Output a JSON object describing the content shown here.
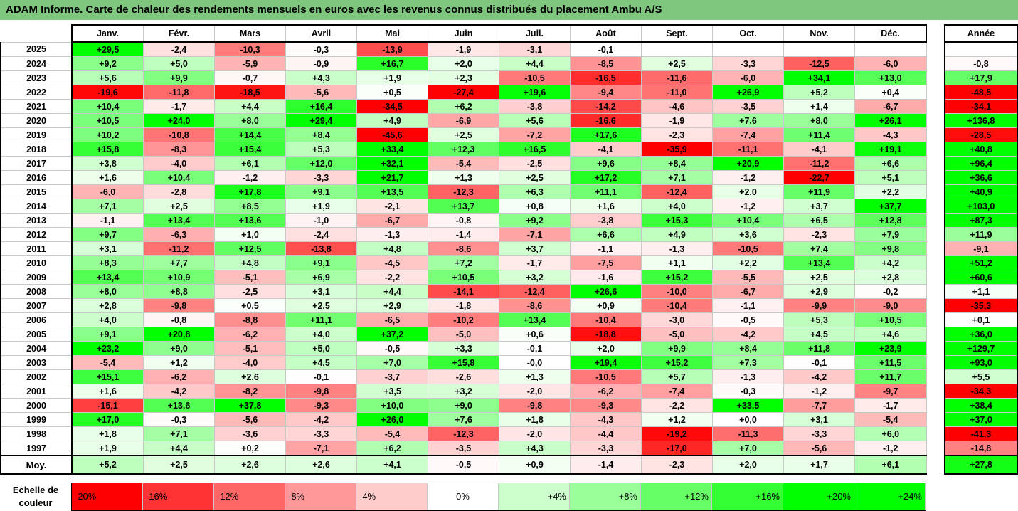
{
  "title": "ADAM Informe. Carte de chaleur des rendements mensuels en euros avec les revenus connus distribués du placement Ambu A/S",
  "chart_data": {
    "type": "heatmap",
    "months": [
      "Janv.",
      "Févr.",
      "Mars",
      "Avril",
      "Mai",
      "Juin",
      "Juil.",
      "Août",
      "Sept.",
      "Oct.",
      "Nov.",
      "Déc."
    ],
    "year_header": "Année",
    "rows": [
      {
        "year": "2025",
        "values": [
          "+29,5",
          "-2,4",
          "-10,3",
          "-0,3",
          "-13,9",
          "-1,9",
          "-3,1",
          "-0,1",
          "",
          "",
          "",
          ""
        ],
        "annual": ""
      },
      {
        "year": "2024",
        "values": [
          "+9,2",
          "+5,0",
          "-5,9",
          "-0,9",
          "+16,7",
          "+2,0",
          "+4,4",
          "-8,5",
          "+2,5",
          "-3,3",
          "-12,5",
          "-6,0"
        ],
        "annual": "-0,8"
      },
      {
        "year": "2023",
        "values": [
          "+5,6",
          "+9,9",
          "-0,7",
          "+4,3",
          "+1,9",
          "+2,3",
          "-10,5",
          "-16,5",
          "-11,6",
          "-6,0",
          "+34,1",
          "+13,0"
        ],
        "annual": "+17,9"
      },
      {
        "year": "2022",
        "values": [
          "-19,6",
          "-11,8",
          "-18,5",
          "-5,6",
          "+0,5",
          "-27,4",
          "+19,6",
          "-9,4",
          "-11,0",
          "+26,9",
          "+5,2",
          "+0,4"
        ],
        "annual": "-48,5"
      },
      {
        "year": "2021",
        "values": [
          "+10,4",
          "-1,7",
          "+4,4",
          "+16,4",
          "-34,5",
          "+6,2",
          "-3,8",
          "-14,2",
          "-4,6",
          "-3,5",
          "+1,4",
          "-6,7"
        ],
        "annual": "-34,1"
      },
      {
        "year": "2020",
        "values": [
          "+10,5",
          "+24,0",
          "+8,0",
          "+29,4",
          "+4,9",
          "-6,9",
          "+5,6",
          "-16,6",
          "-1,9",
          "+7,6",
          "+8,0",
          "+26,1"
        ],
        "annual": "+136,8"
      },
      {
        "year": "2019",
        "values": [
          "+10,2",
          "-10,8",
          "+14,4",
          "+8,4",
          "-45,6",
          "+2,5",
          "-7,2",
          "+17,6",
          "-2,3",
          "-7,4",
          "+11,4",
          "-4,3"
        ],
        "annual": "-28,5"
      },
      {
        "year": "2018",
        "values": [
          "+15,8",
          "-8,3",
          "+15,4",
          "+5,3",
          "+33,4",
          "+12,3",
          "+16,5",
          "-4,1",
          "-35,9",
          "-11,1",
          "-4,1",
          "+19,1"
        ],
        "annual": "+40,8"
      },
      {
        "year": "2017",
        "values": [
          "+3,8",
          "-4,0",
          "+6,1",
          "+12,0",
          "+32,1",
          "-5,4",
          "-2,5",
          "+9,6",
          "+8,4",
          "+20,9",
          "-11,2",
          "+6,6"
        ],
        "annual": "+96,4"
      },
      {
        "year": "2016",
        "values": [
          "+1,6",
          "+10,4",
          "-1,2",
          "-3,3",
          "+21,7",
          "+1,3",
          "+2,5",
          "+17,2",
          "+7,1",
          "-1,2",
          "-22,7",
          "+5,1"
        ],
        "annual": "+36,6"
      },
      {
        "year": "2015",
        "values": [
          "-6,0",
          "-2,8",
          "+17,8",
          "+9,1",
          "+13,5",
          "-12,3",
          "+6,3",
          "+11,1",
          "-12,4",
          "+2,0",
          "+11,9",
          "+2,2"
        ],
        "annual": "+40,9"
      },
      {
        "year": "2014",
        "values": [
          "+7,1",
          "+2,5",
          "+8,5",
          "+1,9",
          "-2,1",
          "+13,7",
          "+0,8",
          "+1,6",
          "+4,0",
          "-1,2",
          "+3,7",
          "+37,7"
        ],
        "annual": "+103,0"
      },
      {
        "year": "2013",
        "values": [
          "-1,1",
          "+13,4",
          "+13,6",
          "-1,0",
          "-6,7",
          "-0,8",
          "+9,2",
          "-3,8",
          "+15,3",
          "+10,4",
          "+6,5",
          "+12,8"
        ],
        "annual": "+87,3"
      },
      {
        "year": "2012",
        "values": [
          "+9,7",
          "-6,3",
          "+1,0",
          "-2,4",
          "-1,3",
          "-1,4",
          "-7,1",
          "+6,6",
          "+4,9",
          "+3,6",
          "-2,3",
          "+7,9"
        ],
        "annual": "+11,9"
      },
      {
        "year": "2011",
        "values": [
          "+3,1",
          "-11,2",
          "+12,5",
          "-13,8",
          "+4,8",
          "-8,6",
          "+3,7",
          "-1,1",
          "-1,3",
          "-10,5",
          "+7,4",
          "+9,8"
        ],
        "annual": "-9,1"
      },
      {
        "year": "2010",
        "values": [
          "+8,3",
          "+7,7",
          "+4,8",
          "+9,1",
          "-4,5",
          "+7,2",
          "-1,7",
          "-7,5",
          "+1,1",
          "+2,2",
          "+13,4",
          "+4,2"
        ],
        "annual": "+51,2"
      },
      {
        "year": "2009",
        "values": [
          "+13,4",
          "+10,9",
          "-5,1",
          "+6,9",
          "-2,2",
          "+10,5",
          "+3,2",
          "-1,6",
          "+15,2",
          "-5,5",
          "+2,5",
          "+2,8"
        ],
        "annual": "+60,6"
      },
      {
        "year": "2008",
        "values": [
          "+8,0",
          "+8,8",
          "-2,5",
          "+3,1",
          "+4,4",
          "-14,1",
          "-12,4",
          "+26,6",
          "-10,0",
          "-6,7",
          "+2,9",
          "-0,2"
        ],
        "annual": "+1,1"
      },
      {
        "year": "2007",
        "values": [
          "+2,8",
          "-9,8",
          "+0,5",
          "+2,5",
          "+2,9",
          "-1,8",
          "-8,6",
          "+0,9",
          "-10,4",
          "-1,1",
          "-9,9",
          "-9,0"
        ],
        "annual": "-35,3"
      },
      {
        "year": "2006",
        "values": [
          "+4,0",
          "-0,8",
          "-8,8",
          "+11,1",
          "-6,5",
          "-10,2",
          "+13,4",
          "-10,4",
          "-3,0",
          "-0,5",
          "+5,3",
          "+10,5"
        ],
        "annual": "+0,1"
      },
      {
        "year": "2005",
        "values": [
          "+9,1",
          "+20,8",
          "-6,2",
          "+4,0",
          "+37,2",
          "-5,0",
          "+0,6",
          "-18,8",
          "-5,0",
          "-4,2",
          "+4,5",
          "+4,6"
        ],
        "annual": "+36,0"
      },
      {
        "year": "2004",
        "values": [
          "+23,2",
          "+9,0",
          "-5,1",
          "+5,0",
          "-0,5",
          "+3,3",
          "-0,1",
          "+2,0",
          "+9,9",
          "+8,4",
          "+11,8",
          "+23,9"
        ],
        "annual": "+129,7"
      },
      {
        "year": "2003",
        "values": [
          "-5,4",
          "+1,2",
          "-4,0",
          "+4,5",
          "+7,0",
          "+15,8",
          "-0,0",
          "+19,4",
          "+15,2",
          "+7,3",
          "-0,1",
          "+11,5"
        ],
        "annual": "+93,0"
      },
      {
        "year": "2002",
        "values": [
          "+15,1",
          "-6,2",
          "+2,6",
          "-0,1",
          "-3,7",
          "-2,6",
          "+1,3",
          "-10,5",
          "+5,7",
          "-1,3",
          "-4,2",
          "+11,7"
        ],
        "annual": "+5,5"
      },
      {
        "year": "2001",
        "values": [
          "+1,6",
          "-4,2",
          "-8,2",
          "-9,8",
          "+3,5",
          "+3,2",
          "-2,0",
          "-6,2",
          "-7,4",
          "-0,3",
          "-1,2",
          "-9,7"
        ],
        "annual": "-34,3"
      },
      {
        "year": "2000",
        "values": [
          "-15,1",
          "+13,6",
          "+37,8",
          "-9,3",
          "+10,0",
          "+9,0",
          "-9,8",
          "-9,3",
          "-2,2",
          "+33,5",
          "-7,7",
          "-1,7"
        ],
        "annual": "+38,4"
      },
      {
        "year": "1999",
        "values": [
          "+17,0",
          "-0,3",
          "-5,6",
          "-4,2",
          "+26,0",
          "+7,6",
          "+1,8",
          "-4,3",
          "+1,2",
          "+0,0",
          "+3,1",
          "-5,4"
        ],
        "annual": "+37,0"
      },
      {
        "year": "1998",
        "values": [
          "+1,8",
          "+7,1",
          "-3,6",
          "-3,3",
          "-5,4",
          "-12,3",
          "-2,0",
          "-4,4",
          "-19,2",
          "-11,3",
          "-3,3",
          "+6,0"
        ],
        "annual": "-41,3"
      },
      {
        "year": "1997",
        "values": [
          "+1,9",
          "+4,4",
          "+0,2",
          "-7,1",
          "+6,2",
          "-3,5",
          "+4,3",
          "-3,3",
          "-17,0",
          "+7,0",
          "-5,6",
          "-1,2"
        ],
        "annual": "-14,8"
      }
    ],
    "average": {
      "label": "Moy.",
      "values": [
        "+5,2",
        "+2,5",
        "+2,6",
        "+2,6",
        "+4,1",
        "-0,5",
        "+0,9",
        "-1,4",
        "-2,3",
        "+2,0",
        "+1,7",
        "+6,1"
      ],
      "annual": "+27,8"
    },
    "scale": {
      "label": "Echelle de couleur",
      "items": [
        {
          "text": "-20%",
          "color": "#ff0000"
        },
        {
          "text": "-16%",
          "color": "#ff3333"
        },
        {
          "text": "-12%",
          "color": "#ff6666"
        },
        {
          "text": "-8%",
          "color": "#ff9999"
        },
        {
          "text": "-4%",
          "color": "#ffcccc"
        },
        {
          "text": "0%",
          "color": "#ffffff"
        },
        {
          "text": "+4%",
          "color": "#ccffcc"
        },
        {
          "text": "+8%",
          "color": "#99ff99"
        },
        {
          "text": "+12%",
          "color": "#66ff66"
        },
        {
          "text": "+16%",
          "color": "#33ff33"
        },
        {
          "text": "+20%",
          "color": "#00ff00"
        },
        {
          "text": "+24%",
          "color": "#00ff00"
        }
      ]
    }
  }
}
